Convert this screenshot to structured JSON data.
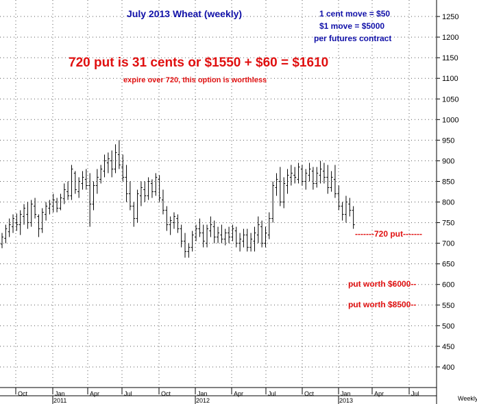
{
  "chart_data": {
    "type": "ohlc",
    "title": "July 2013 Wheat (weekly)",
    "info_lines": [
      "1 cent move = $50",
      "$1 move = $5000",
      "per futures contract"
    ],
    "headline": "720 put is 31 cents or $1550 + $60 = $1610",
    "subline": "expire over 720, this option is worthless",
    "ylim": [
      350,
      1290
    ],
    "yticks": [
      400,
      450,
      500,
      550,
      600,
      650,
      700,
      750,
      800,
      850,
      900,
      950,
      1000,
      1050,
      1100,
      1150,
      1200,
      1250
    ],
    "xlabel": "Weekly",
    "month_labels": [
      "Oct",
      "Jan",
      "Apr",
      "Jul",
      "Oct",
      "Jan",
      "Apr",
      "Jul",
      "Oct",
      "Jan",
      "Apr",
      "Jul"
    ],
    "year_labels": [
      "2011",
      "2012",
      "2013"
    ],
    "annotations": [
      {
        "text": "-------720 put-------",
        "value": 720
      },
      {
        "text": "put worth $6000--",
        "value": 600
      },
      {
        "text": "put worth $8500--",
        "value": 550
      }
    ],
    "bars": [
      [
        698,
        725,
        688,
        715
      ],
      [
        712,
        745,
        700,
        735
      ],
      [
        728,
        760,
        715,
        745
      ],
      [
        740,
        770,
        725,
        760
      ],
      [
        750,
        772,
        730,
        745
      ],
      [
        745,
        780,
        720,
        770
      ],
      [
        765,
        795,
        745,
        785
      ],
      [
        770,
        800,
        735,
        750
      ],
      [
        750,
        805,
        740,
        795
      ],
      [
        790,
        810,
        760,
        770
      ],
      [
        765,
        770,
        715,
        735
      ],
      [
        735,
        785,
        725,
        775
      ],
      [
        770,
        800,
        755,
        790
      ],
      [
        785,
        805,
        770,
        795
      ],
      [
        790,
        820,
        775,
        805
      ],
      [
        800,
        810,
        775,
        785
      ],
      [
        785,
        820,
        780,
        810
      ],
      [
        808,
        845,
        795,
        830
      ],
      [
        825,
        850,
        805,
        815
      ],
      [
        815,
        890,
        805,
        880
      ],
      [
        870,
        875,
        820,
        830
      ],
      [
        825,
        860,
        810,
        850
      ],
      [
        845,
        875,
        830,
        860
      ],
      [
        855,
        880,
        830,
        840
      ],
      [
        840,
        870,
        740,
        795
      ],
      [
        795,
        850,
        780,
        840
      ],
      [
        840,
        880,
        820,
        860
      ],
      [
        855,
        890,
        845,
        880
      ],
      [
        875,
        915,
        860,
        900
      ],
      [
        895,
        920,
        870,
        905
      ],
      [
        900,
        925,
        860,
        880
      ],
      [
        880,
        940,
        870,
        920
      ],
      [
        915,
        950,
        880,
        890
      ],
      [
        885,
        915,
        850,
        860
      ],
      [
        860,
        890,
        800,
        820
      ],
      [
        820,
        850,
        780,
        790
      ],
      [
        790,
        800,
        740,
        760
      ],
      [
        760,
        830,
        750,
        820
      ],
      [
        815,
        850,
        790,
        835
      ],
      [
        830,
        850,
        800,
        815
      ],
      [
        815,
        860,
        805,
        850
      ],
      [
        845,
        855,
        810,
        825
      ],
      [
        825,
        870,
        815,
        860
      ],
      [
        855,
        865,
        800,
        810
      ],
      [
        805,
        830,
        770,
        780
      ],
      [
        780,
        790,
        730,
        745
      ],
      [
        745,
        765,
        720,
        755
      ],
      [
        750,
        775,
        735,
        765
      ],
      [
        760,
        770,
        725,
        735
      ],
      [
        735,
        745,
        690,
        705
      ],
      [
        705,
        725,
        665,
        680
      ],
      [
        680,
        700,
        665,
        690
      ],
      [
        690,
        730,
        680,
        720
      ],
      [
        715,
        745,
        705,
        735
      ],
      [
        735,
        760,
        715,
        725
      ],
      [
        725,
        745,
        690,
        705
      ],
      [
        700,
        745,
        690,
        735
      ],
      [
        730,
        765,
        715,
        745
      ],
      [
        740,
        755,
        700,
        715
      ],
      [
        715,
        740,
        700,
        725
      ],
      [
        720,
        745,
        700,
        710
      ],
      [
        710,
        735,
        695,
        725
      ],
      [
        725,
        740,
        700,
        715
      ],
      [
        715,
        745,
        705,
        735
      ],
      [
        730,
        740,
        690,
        700
      ],
      [
        700,
        725,
        680,
        710
      ],
      [
        705,
        735,
        690,
        720
      ],
      [
        720,
        735,
        680,
        690
      ],
      [
        690,
        725,
        680,
        710
      ],
      [
        705,
        740,
        680,
        725
      ],
      [
        720,
        765,
        700,
        745
      ],
      [
        740,
        755,
        690,
        700
      ],
      [
        700,
        740,
        690,
        725
      ],
      [
        720,
        775,
        710,
        760
      ],
      [
        760,
        850,
        750,
        840
      ],
      [
        835,
        870,
        815,
        855
      ],
      [
        850,
        885,
        790,
        800
      ],
      [
        800,
        860,
        785,
        845
      ],
      [
        840,
        880,
        820,
        865
      ],
      [
        860,
        890,
        840,
        870
      ],
      [
        865,
        885,
        845,
        860
      ],
      [
        855,
        895,
        845,
        885
      ],
      [
        880,
        890,
        840,
        850
      ],
      [
        850,
        880,
        830,
        870
      ],
      [
        865,
        895,
        850,
        880
      ],
      [
        875,
        885,
        830,
        845
      ],
      [
        845,
        885,
        835,
        870
      ],
      [
        865,
        900,
        845,
        880
      ],
      [
        875,
        895,
        845,
        860
      ],
      [
        860,
        890,
        820,
        835
      ],
      [
        835,
        875,
        825,
        860
      ],
      [
        855,
        890,
        810,
        820
      ],
      [
        820,
        840,
        780,
        790
      ],
      [
        790,
        800,
        755,
        770
      ],
      [
        770,
        815,
        750,
        800
      ],
      [
        795,
        810,
        765,
        780
      ],
      [
        780,
        790,
        735,
        745
      ]
    ]
  }
}
